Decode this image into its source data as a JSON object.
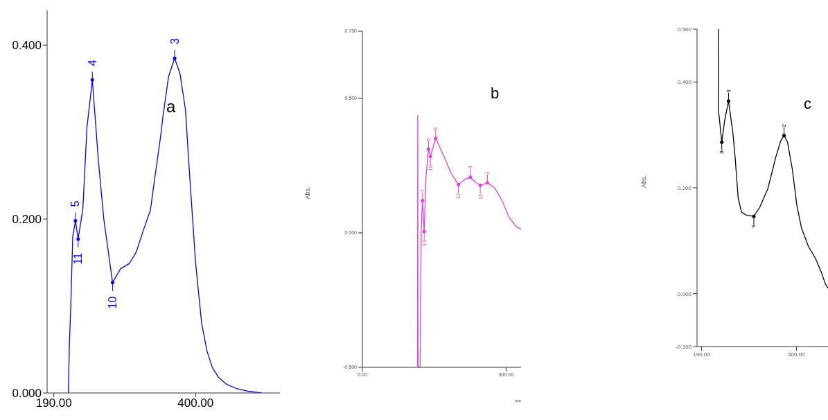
{
  "chart_data": [
    {
      "type": "line",
      "marker": "none",
      "xlim": [
        180,
        525
      ],
      "ylim": [
        0,
        0.44
      ],
      "xticks": [
        {
          "value": 190,
          "label": "190.00"
        },
        {
          "value": 400,
          "label": "400.00"
        }
      ],
      "yticks": [
        {
          "value": 0,
          "label": "0.000"
        },
        {
          "value": 0.2,
          "label": "0.200"
        },
        {
          "value": 0.4,
          "label": "0.400"
        }
      ],
      "x": [
        211.5,
        213,
        215,
        218,
        222,
        226,
        233,
        239,
        247,
        256,
        264,
        277,
        289,
        302,
        312,
        323,
        333,
        339,
        348,
        352,
        360,
        363,
        369,
        377,
        385,
        392,
        400,
        409,
        417,
        425,
        434,
        446,
        461,
        477,
        498
      ],
      "series": [
        {
          "color": "#0000ff",
          "values": [
            0,
            0.056,
            0.098,
            0.18,
            0.198,
            0.177,
            0.212,
            0.305,
            0.36,
            0.267,
            0.2,
            0.127,
            0.143,
            0.149,
            0.162,
            0.188,
            0.21,
            0.244,
            0.294,
            0.32,
            0.364,
            0.371,
            0.385,
            0.367,
            0.326,
            0.241,
            0.15,
            0.08,
            0.048,
            0.029,
            0.018,
            0.01,
            0.005,
            0.002,
            0
          ]
        }
      ],
      "annotations": [
        "a",
        {
          "text": "5",
          "x": 222,
          "y": 0.198
        },
        {
          "text": "11",
          "x": 226,
          "y": 0.177
        },
        {
          "text": "4",
          "x": 247,
          "y": 0.36
        },
        {
          "text": "10",
          "x": 277,
          "y": 0.127
        },
        {
          "text": "3",
          "x": 369,
          "y": 0.385
        }
      ]
    },
    {
      "type": "line",
      "marker": "none",
      "xlim": [
        0,
        552
      ],
      "ylim": [
        -0.5,
        0.75
      ],
      "xlabel": "nm",
      "ylabel": "Abs.",
      "xticks": [
        {
          "value": 0,
          "label": "0.00"
        },
        {
          "value": 500,
          "label": "500.00"
        }
      ],
      "yticks": [
        {
          "value": -0.5,
          "label": "-0.500"
        },
        {
          "value": 0,
          "label": "0.000"
        },
        {
          "value": 0.5,
          "label": "0.500"
        },
        {
          "value": 0.75,
          "label": "0.750"
        }
      ],
      "x": [
        192,
        192.5,
        193.5,
        200,
        200.6,
        204.8,
        209,
        215,
        221.5,
        230,
        236.6,
        255,
        280,
        309,
        334,
        355,
        376,
        393,
        410,
        435,
        460,
        485,
        510,
        535,
        552
      ],
      "series": [
        {
          "color": "#e040e0",
          "values": [
            -0.5,
            0.437,
            -0.5,
            -0.5,
            -0.5,
            0.014,
            0.12,
            0.005,
            0.212,
            0.311,
            0.284,
            0.351,
            0.293,
            0.221,
            0.18,
            0.198,
            0.207,
            0.189,
            0.177,
            0.186,
            0.167,
            0.122,
            0.059,
            0.023,
            0.014
          ]
        }
      ],
      "annotations": [
        "b",
        {
          "text": "7",
          "x": 209,
          "y": 0.12
        },
        {
          "text": "13",
          "x": 215,
          "y": 0.005
        },
        {
          "text": "5",
          "x": 230,
          "y": 0.311
        },
        {
          "text": "10",
          "x": 236.6,
          "y": 0.284
        },
        {
          "text": "6",
          "x": 255,
          "y": 0.351
        },
        {
          "text": "12",
          "x": 334,
          "y": 0.18
        },
        {
          "text": "4",
          "x": 376,
          "y": 0.207
        },
        {
          "text": "11",
          "x": 410,
          "y": 0.177
        },
        {
          "text": "3",
          "x": 435,
          "y": 0.186
        }
      ]
    },
    {
      "type": "line",
      "marker": "none",
      "xlim": [
        180,
        470
      ],
      "ylim": [
        -0.1,
        0.5
      ],
      "ylabel": "Abs.",
      "xticks": [
        {
          "value": 190,
          "label": "190.00"
        },
        {
          "value": 400,
          "label": "400.00"
        }
      ],
      "yticks": [
        {
          "value": -0.1,
          "label": "-0.100"
        },
        {
          "value": 0,
          "label": "0.000"
        },
        {
          "value": 0.2,
          "label": "0.200"
        },
        {
          "value": 0.4,
          "label": "0.400"
        },
        {
          "value": 0.5,
          "label": "0.500"
        }
      ],
      "x": [
        227,
        227.1,
        228.6,
        234.8,
        241.5,
        249.7,
        259.5,
        264.6,
        271,
        278.5,
        290,
        305.8,
        318.7,
        336.7,
        354.7,
        365,
        372.7,
        380.4,
        390.7,
        401,
        411.3,
        426.7,
        442,
        455,
        463.8,
        470
      ],
      "series": [
        {
          "color": "#000000",
          "values": [
            0.5,
            0.342,
            0.338,
            0.286,
            0.329,
            0.364,
            0.303,
            0.255,
            0.181,
            0.154,
            0.148,
            0.146,
            0.163,
            0.198,
            0.259,
            0.288,
            0.299,
            0.286,
            0.237,
            0.167,
            0.124,
            0.089,
            0.067,
            0.041,
            0.019,
            0.01
          ]
        }
      ],
      "annotations": [
        "c",
        {
          "text": "8",
          "x": 234.8,
          "y": 0.286
        },
        {
          "text": "3",
          "x": 249.7,
          "y": 0.364
        },
        {
          "text": "9",
          "x": 305.8,
          "y": 0.146
        },
        {
          "text": "2",
          "x": 372.7,
          "y": 0.299
        }
      ]
    }
  ]
}
